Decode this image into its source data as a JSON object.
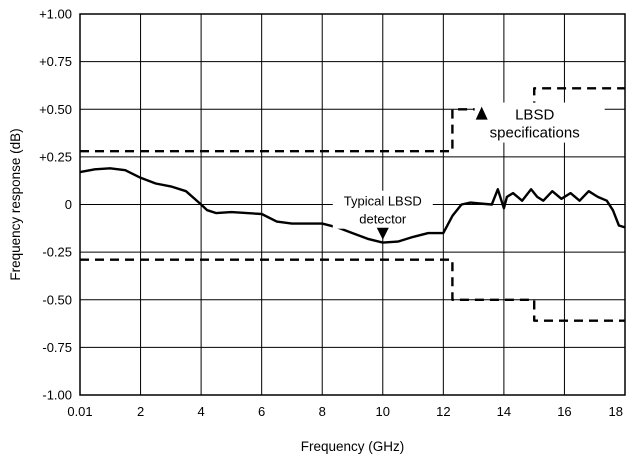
{
  "chart_data": {
    "type": "line",
    "title": "",
    "xlabel": "Frequency (GHz)",
    "ylabel": "Frequency response (dB)",
    "xlim": [
      0.01,
      18
    ],
    "ylim": [
      -1.0,
      1.0
    ],
    "grid": true,
    "x_ticks": [
      0.01,
      2,
      4,
      6,
      8,
      10,
      12,
      14,
      16,
      18
    ],
    "x_tick_labels": [
      "0.01",
      "2",
      "4",
      "6",
      "8",
      "10",
      "12",
      "14",
      "16",
      "18"
    ],
    "y_ticks": [
      1.0,
      0.75,
      0.5,
      0.25,
      0,
      -0.25,
      -0.5,
      -0.75,
      -1.0
    ],
    "y_tick_labels": [
      "+1.00",
      "+0.75",
      "+0.50",
      "+0.25",
      "0",
      "-0.25",
      "-0.50",
      "-0.75",
      "-1.00"
    ],
    "series": [
      {
        "style": "solid",
        "x": [
          0.01,
          0.5,
          1.0,
          1.5,
          2.0,
          2.5,
          3.0,
          3.5,
          4.0,
          4.2,
          4.5,
          5.0,
          6.0,
          6.5,
          7.0,
          8.0,
          8.5,
          9.0,
          9.5,
          10.0,
          10.5,
          11.0,
          11.5,
          12.0,
          12.3,
          12.6,
          12.9,
          13.2,
          13.6,
          13.8,
          14.0,
          14.1,
          14.3,
          14.6,
          14.9,
          15.1,
          15.3,
          15.6,
          15.9,
          16.2,
          16.5,
          16.8,
          17.1,
          17.4,
          17.6,
          17.8,
          18.0
        ],
        "y": [
          0.17,
          0.185,
          0.19,
          0.18,
          0.14,
          0.11,
          0.095,
          0.07,
          0.0,
          -0.03,
          -0.045,
          -0.04,
          -0.05,
          -0.09,
          -0.1,
          -0.1,
          -0.12,
          -0.15,
          -0.18,
          -0.2,
          -0.195,
          -0.17,
          -0.15,
          -0.15,
          -0.06,
          0.0,
          0.01,
          0.005,
          0.0,
          0.08,
          -0.02,
          0.04,
          0.06,
          0.02,
          0.08,
          0.04,
          0.02,
          0.07,
          0.03,
          0.06,
          0.02,
          0.07,
          0.04,
          0.02,
          -0.03,
          -0.11,
          -0.12
        ]
      },
      {
        "style": "dashed",
        "x": [
          0.01,
          12.3,
          12.3,
          15.0,
          15.0,
          18.0
        ],
        "y": [
          0.28,
          0.28,
          0.5,
          0.5,
          0.61,
          0.61
        ]
      },
      {
        "style": "dashed",
        "x": [
          0.01,
          12.3,
          12.3,
          15.0,
          15.0,
          18.0
        ],
        "y": [
          -0.29,
          -0.29,
          -0.5,
          -0.5,
          -0.61,
          -0.61
        ]
      }
    ],
    "annotations": [
      {
        "lines": [
          "LBSD",
          "specifications"
        ],
        "x": 13.3,
        "y": 0.43
      },
      {
        "lines": [
          "Typical LBSD",
          "detector"
        ],
        "x": 10.0,
        "y": -0.19
      }
    ]
  }
}
